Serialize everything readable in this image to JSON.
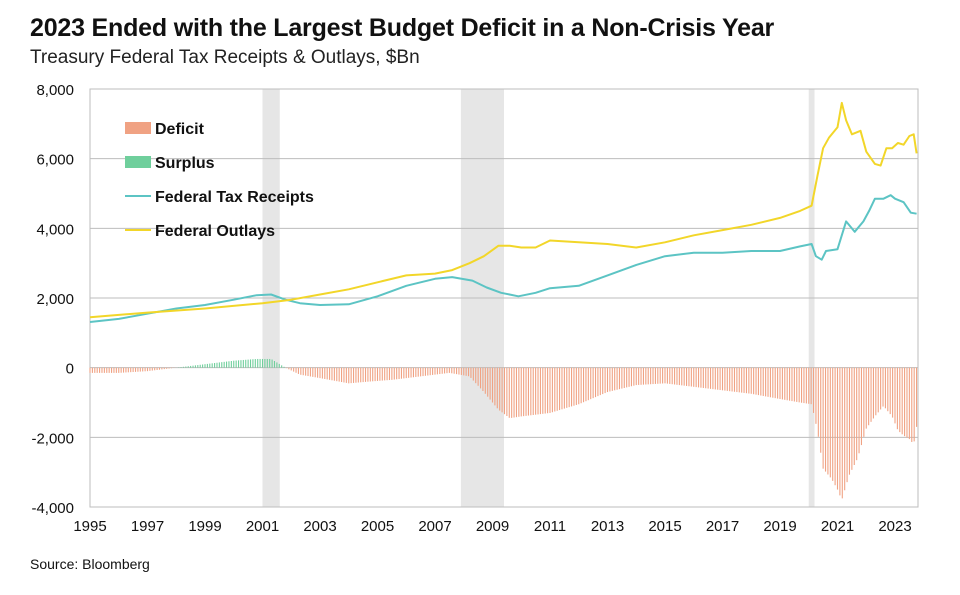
{
  "title": "2023 Ended with the Largest Budget Deficit in a Non-Crisis Year",
  "subtitle": "Treasury Federal Tax Receipts & Outlays, $Bn",
  "source": "Source: Bloomberg",
  "colors": {
    "deficit": "#f0a283",
    "surplus": "#6fcf9c",
    "receipts": "#5cc4c4",
    "outlays": "#f2d629",
    "recession": "#e6e6e6",
    "grid": "#bdbdbd"
  },
  "chart_data": {
    "type": "line",
    "title": "2023 Ended with the Largest Budget Deficit in a Non-Crisis Year",
    "subtitle": "Treasury Federal Tax Receipts & Outlays, $Bn",
    "xlabel": "",
    "ylabel": "",
    "xlim": [
      1995,
      2023.8
    ],
    "ylim": [
      -4000,
      8000
    ],
    "grid": true,
    "legend_position": "top-left",
    "x_ticks": [
      "1995",
      "1997",
      "1999",
      "2001",
      "2003",
      "2005",
      "2007",
      "2009",
      "2011",
      "2013",
      "2015",
      "2017",
      "2019",
      "2021",
      "2023"
    ],
    "y_ticks": [
      "8,000",
      "6,000",
      "4,000",
      "2,000",
      "0",
      "-2,000",
      "-4,000"
    ],
    "legend": [
      {
        "name": "Deficit",
        "kind": "bar",
        "color_key": "deficit"
      },
      {
        "name": "Surplus",
        "kind": "bar",
        "color_key": "surplus"
      },
      {
        "name": "Federal Tax Receipts",
        "kind": "line",
        "color_key": "receipts"
      },
      {
        "name": "Federal Outlays",
        "kind": "line",
        "color_key": "outlays"
      }
    ],
    "recessions": [
      [
        2001.0,
        2001.6
      ],
      [
        2007.9,
        2009.4
      ],
      [
        2020.0,
        2020.2
      ]
    ],
    "series": [
      {
        "name": "Federal Tax Receipts",
        "x": [
          1995,
          1996,
          1997,
          1998,
          1999,
          2000,
          2000.8,
          2001.3,
          2001.8,
          2002.3,
          2003,
          2004,
          2005,
          2006,
          2007,
          2007.6,
          2008.3,
          2008.8,
          2009.3,
          2009.9,
          2010.5,
          2011,
          2012,
          2013,
          2014,
          2015,
          2016,
          2017,
          2018,
          2019,
          2019.7,
          2020.1,
          2020.25,
          2020.45,
          2020.6,
          2021,
          2021.15,
          2021.3,
          2021.6,
          2021.9,
          2022.1,
          2022.3,
          2022.6,
          2022.85,
          2023,
          2023.3,
          2023.55,
          2023.75
        ],
        "values": [
          1310,
          1400,
          1550,
          1700,
          1800,
          1950,
          2080,
          2100,
          1950,
          1850,
          1800,
          1820,
          2050,
          2350,
          2550,
          2600,
          2500,
          2300,
          2150,
          2050,
          2150,
          2280,
          2350,
          2650,
          2950,
          3200,
          3300,
          3300,
          3350,
          3350,
          3480,
          3550,
          3200,
          3100,
          3350,
          3400,
          3800,
          4200,
          3900,
          4200,
          4500,
          4850,
          4850,
          4950,
          4850,
          4750,
          4450,
          4420
        ]
      },
      {
        "name": "Federal Outlays",
        "x": [
          1995,
          1997,
          1999,
          2001,
          2002,
          2003,
          2004,
          2005,
          2006,
          2007,
          2007.6,
          2008.2,
          2008.7,
          2009.2,
          2009.6,
          2010,
          2010.5,
          2011,
          2012,
          2013,
          2014,
          2015,
          2016,
          2017,
          2018,
          2019,
          2019.7,
          2020.1,
          2020.3,
          2020.5,
          2020.7,
          2021,
          2021.15,
          2021.3,
          2021.5,
          2021.8,
          2022,
          2022.3,
          2022.5,
          2022.7,
          2022.9,
          2023.1,
          2023.3,
          2023.5,
          2023.65,
          2023.75
        ],
        "values": [
          1450,
          1580,
          1700,
          1850,
          1950,
          2100,
          2250,
          2450,
          2650,
          2700,
          2800,
          3000,
          3200,
          3500,
          3500,
          3450,
          3450,
          3650,
          3600,
          3550,
          3450,
          3600,
          3800,
          3950,
          4100,
          4300,
          4500,
          4650,
          5500,
          6300,
          6600,
          6900,
          7600,
          7100,
          6700,
          6800,
          6200,
          5850,
          5800,
          6300,
          6300,
          6450,
          6400,
          6650,
          6700,
          6150
        ]
      },
      {
        "name": "Deficit / Surplus",
        "x": [
          1995,
          1996,
          1997,
          1998,
          1999,
          2000,
          2000.8,
          2001.3,
          2001.8,
          2002.3,
          2003,
          2004,
          2004.7,
          2005.5,
          2006.5,
          2007.5,
          2008.2,
          2008.7,
          2009.2,
          2009.6,
          2010,
          2011,
          2012,
          2013,
          2014,
          2015,
          2016,
          2017,
          2018,
          2019,
          2019.7,
          2020.1,
          2020.3,
          2020.5,
          2020.8,
          2021,
          2021.15,
          2021.4,
          2021.7,
          2022,
          2022.3,
          2022.6,
          2022.9,
          2023.1,
          2023.3,
          2023.5,
          2023.65,
          2023.75
        ],
        "values": [
          -150,
          -150,
          -100,
          0,
          100,
          200,
          250,
          250,
          0,
          -200,
          -300,
          -450,
          -400,
          -350,
          -250,
          -150,
          -250,
          -700,
          -1200,
          -1450,
          -1400,
          -1300,
          -1050,
          -700,
          -500,
          -450,
          -550,
          -650,
          -750,
          -900,
          -1000,
          -1050,
          -1800,
          -2900,
          -3200,
          -3500,
          -3800,
          -3100,
          -2600,
          -1750,
          -1400,
          -1100,
          -1400,
          -1800,
          -1950,
          -2050,
          -2200,
          -1700
        ]
      }
    ]
  }
}
